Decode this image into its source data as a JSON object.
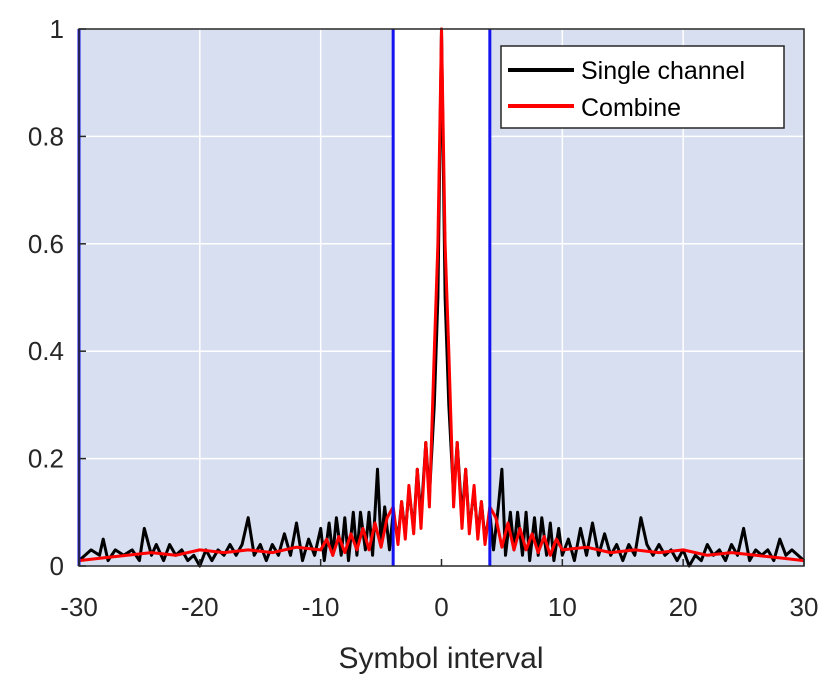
{
  "chart_data": {
    "type": "line",
    "title": "",
    "xlabel": "Symbol interval",
    "ylabel": "",
    "xlim": [
      -30,
      30
    ],
    "ylim": [
      0,
      1
    ],
    "xticks": [
      -30,
      -20,
      -10,
      0,
      10,
      20,
      30
    ],
    "yticks": [
      0,
      0.2,
      0.4,
      0.6,
      0.8,
      1
    ],
    "grid": true,
    "legend_position": "top-right",
    "colors": {
      "shaded_region": "#d7dff0",
      "boundary_lines": "#1414f0",
      "grid": "#ffffff"
    },
    "shaded_regions": [
      [
        -30,
        -4
      ],
      [
        4,
        30
      ]
    ],
    "vertical_lines": [
      -30,
      -4,
      4
    ],
    "series": [
      {
        "name": "Single channel",
        "color": "#000000",
        "x": [
          -30,
          -29,
          -28.3,
          -28,
          -27.6,
          -27,
          -26.3,
          -25.6,
          -25,
          -24.6,
          -24,
          -23.6,
          -23,
          -22.5,
          -22,
          -21.5,
          -21,
          -20.5,
          -20,
          -19.5,
          -19,
          -18.5,
          -18,
          -17.5,
          -17,
          -16.5,
          -16,
          -15.5,
          -15,
          -14.5,
          -14,
          -13.5,
          -13,
          -12.5,
          -12,
          -11.5,
          -11,
          -10.5,
          -10,
          -9.7,
          -9.3,
          -9,
          -8.7,
          -8.3,
          -8,
          -7.7,
          -7.3,
          -7,
          -6.7,
          -6.3,
          -6,
          -5.7,
          -5.3,
          -5,
          -4.7,
          -4.3,
          -4,
          -3.6,
          -3.3,
          -3,
          -2.7,
          -2.3,
          -2,
          -1.7,
          -1.3,
          -1,
          -0.6,
          -0.3,
          0,
          0.3,
          0.6,
          1,
          1.3,
          1.7,
          2,
          2.3,
          2.7,
          3,
          3.3,
          3.6,
          4,
          4.3,
          4.7,
          5,
          5.3,
          5.7,
          6,
          6.3,
          6.7,
          7,
          7.3,
          7.7,
          8,
          8.3,
          8.7,
          9,
          9.3,
          9.7,
          10,
          10.5,
          11,
          11.5,
          12,
          12.5,
          13,
          13.5,
          14,
          14.5,
          15,
          15.5,
          16,
          16.5,
          17,
          17.5,
          18,
          18.5,
          19,
          19.5,
          20,
          20.5,
          21,
          21.5,
          22,
          22.5,
          23,
          23.5,
          24,
          24.5,
          25,
          25.5,
          26,
          26.5,
          27,
          27.5,
          28,
          28.5,
          29,
          30
        ],
        "y": [
          0.01,
          0.03,
          0.02,
          0.05,
          0.01,
          0.03,
          0.02,
          0.03,
          0.01,
          0.07,
          0.02,
          0.04,
          0.01,
          0.04,
          0.02,
          0.03,
          0.01,
          0.02,
          0.0,
          0.03,
          0.01,
          0.03,
          0.02,
          0.04,
          0.02,
          0.04,
          0.09,
          0.02,
          0.04,
          0.01,
          0.04,
          0.02,
          0.06,
          0.02,
          0.08,
          0.01,
          0.05,
          0.02,
          0.07,
          0.01,
          0.08,
          0.02,
          0.09,
          0.02,
          0.09,
          0.01,
          0.1,
          0.02,
          0.1,
          0.03,
          0.1,
          0.02,
          0.18,
          0.04,
          0.11,
          0.03,
          0.1,
          0.05,
          0.12,
          0.06,
          0.14,
          0.07,
          0.18,
          0.09,
          0.23,
          0.13,
          0.3,
          0.5,
          1.0,
          0.5,
          0.3,
          0.13,
          0.23,
          0.09,
          0.18,
          0.07,
          0.14,
          0.06,
          0.12,
          0.05,
          0.1,
          0.03,
          0.11,
          0.18,
          0.02,
          0.1,
          0.03,
          0.1,
          0.02,
          0.1,
          0.01,
          0.09,
          0.02,
          0.09,
          0.02,
          0.08,
          0.01,
          0.07,
          0.02,
          0.05,
          0.01,
          0.07,
          0.02,
          0.08,
          0.02,
          0.06,
          0.02,
          0.04,
          0.01,
          0.04,
          0.02,
          0.09,
          0.04,
          0.02,
          0.04,
          0.02,
          0.03,
          0.01,
          0.03,
          0.0,
          0.02,
          0.01,
          0.04,
          0.02,
          0.03,
          0.01,
          0.04,
          0.02,
          0.07,
          0.01,
          0.03,
          0.02,
          0.03,
          0.01,
          0.05,
          0.02,
          0.03,
          0.01
        ]
      },
      {
        "name": "Combine",
        "color": "#ff0000",
        "x": [
          -30,
          -28,
          -26,
          -24,
          -22,
          -20,
          -18,
          -16,
          -14,
          -12,
          -10,
          -9.5,
          -9,
          -8.5,
          -8,
          -7.5,
          -7,
          -6.5,
          -6,
          -5.5,
          -5,
          -4.5,
          -4,
          -3.6,
          -3.3,
          -3,
          -2.7,
          -2.3,
          -2,
          -1.7,
          -1.3,
          -1,
          -0.6,
          -0.3,
          0,
          0.3,
          0.6,
          1,
          1.3,
          1.7,
          2,
          2.3,
          2.7,
          3,
          3.3,
          3.6,
          4,
          4.5,
          5,
          5.5,
          6,
          6.5,
          7,
          7.5,
          8,
          8.5,
          9,
          9.5,
          10,
          12,
          14,
          16,
          18,
          20,
          22,
          24,
          26,
          28,
          30
        ],
        "y": [
          0.01,
          0.015,
          0.02,
          0.025,
          0.02,
          0.03,
          0.025,
          0.03,
          0.025,
          0.035,
          0.03,
          0.05,
          0.02,
          0.055,
          0.025,
          0.06,
          0.03,
          0.07,
          0.03,
          0.08,
          0.035,
          0.09,
          0.11,
          0.04,
          0.12,
          0.05,
          0.15,
          0.06,
          0.18,
          0.07,
          0.23,
          0.11,
          0.4,
          0.6,
          1.0,
          0.6,
          0.4,
          0.11,
          0.23,
          0.07,
          0.18,
          0.06,
          0.15,
          0.05,
          0.12,
          0.04,
          0.11,
          0.09,
          0.035,
          0.08,
          0.03,
          0.07,
          0.03,
          0.06,
          0.025,
          0.055,
          0.02,
          0.05,
          0.03,
          0.035,
          0.025,
          0.03,
          0.025,
          0.03,
          0.02,
          0.025,
          0.02,
          0.015,
          0.01
        ]
      }
    ]
  }
}
